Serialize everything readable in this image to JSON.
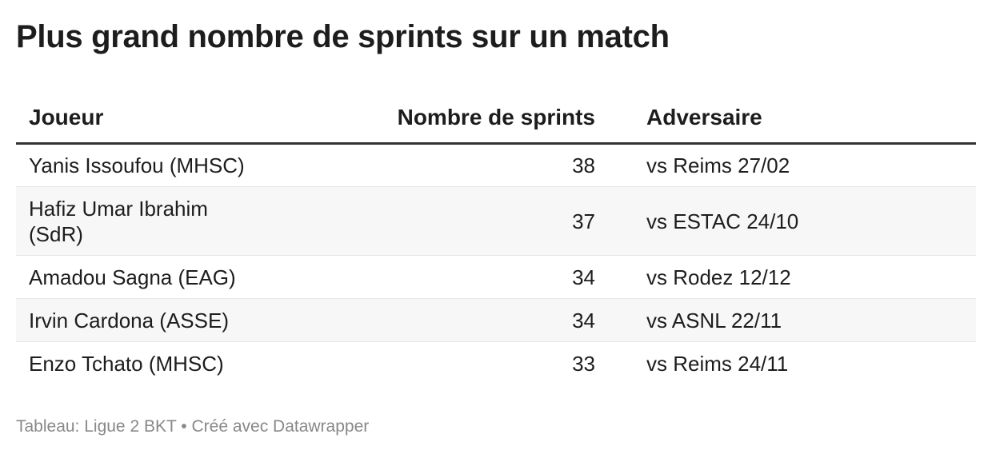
{
  "title": "Plus grand nombre de sprints sur un match",
  "chart_data": {
    "type": "table",
    "title": "Plus grand nombre de sprints sur un match",
    "columns": [
      "Joueur",
      "Nombre de sprints",
      "Adversaire"
    ],
    "rows": [
      {
        "player": "Yanis Issoufou (MHSC)",
        "sprints": "38",
        "opponent": "vs Reims 27/02"
      },
      {
        "player": "Hafiz Umar Ibrahim (SdR)",
        "sprints": "37",
        "opponent": "vs ESTAC 24/10"
      },
      {
        "player": "Amadou Sagna (EAG)",
        "sprints": "34",
        "opponent": "vs Rodez 12/12"
      },
      {
        "player": "Irvin Cardona (ASSE)",
        "sprints": "34",
        "opponent": "vs ASNL 22/11"
      },
      {
        "player": "Enzo Tchato (MHSC)",
        "sprints": "33",
        "opponent": "vs Reims 24/11"
      }
    ]
  },
  "footer": {
    "source_label": "Tableau: Ligue 2 BKT",
    "separator": "•",
    "credit": "Créé avec Datawrapper"
  },
  "colors": {
    "text": "#1d1d1d",
    "header_rule": "#333333",
    "row_stripe": "#f7f7f7",
    "row_divider": "#e6e6e6",
    "footer_text": "#888888"
  }
}
